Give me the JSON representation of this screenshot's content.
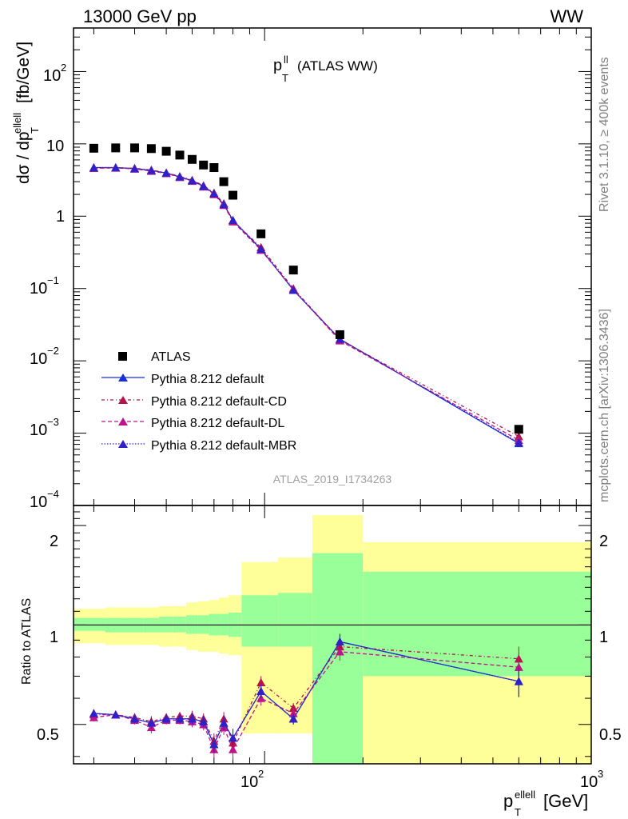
{
  "header": {
    "energy": "13000 GeV pp",
    "process": "WW",
    "plot_title_main": "p",
    "plot_title_sup": "ll",
    "plot_title_sub": "T",
    "plot_title_rest": "(ATLAS WW)",
    "watermark": "ATLAS_2019_I1734263",
    "side_rivet": "Rivet 3.1.10, ≥ 400k events",
    "side_mcplots": "mcplots.cern.ch [arXiv:1306.3436]"
  },
  "axes": {
    "top_ylabel_pre": "dσ / dp",
    "top_ylabel_sup": "ellell",
    "top_ylabel_sub": "T",
    "top_ylabel_post": " [fb/GeV]",
    "xlabel_main": "p",
    "xlabel_sup": "ellell",
    "xlabel_sub": "T",
    "xlabel_post": " [GeV]",
    "ratio_ylabel": "Ratio to ATLAS",
    "top_yticks": [
      {
        "base": "10",
        "exp": "2"
      },
      {
        "base": "10",
        "exp": ""
      },
      {
        "base": "1",
        "exp": ""
      },
      {
        "base": "10",
        "exp": "−1"
      },
      {
        "base": "10",
        "exp": "−2"
      },
      {
        "base": "10",
        "exp": "−3"
      },
      {
        "base": "10",
        "exp": "−4"
      }
    ],
    "xticks": [
      {
        "base": "10",
        "exp": "2"
      },
      {
        "base": "10",
        "exp": "3"
      }
    ],
    "ratio_yticks": [
      "2",
      "1",
      "0.5"
    ]
  },
  "legend": {
    "entries": [
      "ATLAS",
      "Pythia 8.212 default",
      "Pythia 8.212 default-CD",
      "Pythia 8.212 default-DL",
      "Pythia 8.212 default-MBR"
    ]
  },
  "chart_data": {
    "type": "scatter",
    "x_scale": "log",
    "y_scale": "log",
    "xlim": [
      26,
      1000
    ],
    "ylim": [
      0.0001,
      400
    ],
    "ratio_ylim": [
      0.38,
      2.3
    ],
    "colors": {
      "data": "#000000",
      "default": "#1a2fd6",
      "cd": "#b5134a",
      "dl": "#c0158a",
      "mbr": "#3020c8",
      "band_inner": "#99ff99",
      "band_outer": "#ffff99"
    },
    "x": [
      30,
      35,
      40,
      45,
      50,
      55,
      60,
      65,
      70,
      75,
      80,
      97.5,
      122.5,
      170,
      600
    ],
    "bin_edges": [
      26,
      32.5,
      37.5,
      42.5,
      47.5,
      52.5,
      57.5,
      62.5,
      67.5,
      72.5,
      77.5,
      85,
      110,
      140,
      200,
      1000
    ],
    "atlas": {
      "name": "ATLAS",
      "y": [
        8.7,
        8.8,
        8.8,
        8.6,
        7.9,
        7.0,
        6.1,
        5.1,
        4.7,
        3.0,
        1.95,
        0.57,
        0.18,
        0.023,
        0.00113
      ],
      "band_inner": [
        [
          0.96,
          1.05
        ],
        [
          0.95,
          1.05
        ],
        [
          0.95,
          1.05
        ],
        [
          0.95,
          1.05
        ],
        [
          0.95,
          1.06
        ],
        [
          0.95,
          1.06
        ],
        [
          0.94,
          1.07
        ],
        [
          0.94,
          1.07
        ],
        [
          0.93,
          1.08
        ],
        [
          0.93,
          1.08
        ],
        [
          0.92,
          1.09
        ],
        [
          0.86,
          1.23
        ],
        [
          0.86,
          1.25
        ],
        [
          0.35,
          1.65
        ],
        [
          0.7,
          1.45
        ]
      ],
      "band_outer": [
        [
          0.88,
          1.12
        ],
        [
          0.87,
          1.13
        ],
        [
          0.87,
          1.13
        ],
        [
          0.87,
          1.13
        ],
        [
          0.86,
          1.14
        ],
        [
          0.86,
          1.14
        ],
        [
          0.84,
          1.17
        ],
        [
          0.83,
          1.18
        ],
        [
          0.83,
          1.19
        ],
        [
          0.82,
          1.21
        ],
        [
          0.81,
          1.23
        ],
        [
          0.47,
          1.55
        ],
        [
          0.47,
          1.6
        ],
        [
          0.35,
          2.15
        ],
        [
          0.35,
          1.78
        ]
      ]
    },
    "series": [
      {
        "name": "Pythia 8.212 default",
        "key": "default",
        "y": [
          4.7,
          4.7,
          4.55,
          4.3,
          3.95,
          3.5,
          3.1,
          2.6,
          2.05,
          1.45,
          0.88,
          0.35,
          0.095,
          0.02,
          0.00072
        ],
        "ratio": [
          0.54,
          0.535,
          0.52,
          0.505,
          0.52,
          0.52,
          0.52,
          0.51,
          0.435,
          0.505,
          0.455,
          0.63,
          0.52,
          0.89,
          0.675
        ],
        "ratio_err": [
          0.015,
          0.012,
          0.015,
          0.02,
          0.015,
          0.015,
          0.02,
          0.02,
          0.025,
          0.025,
          0.03,
          0.03,
          0.02,
          0.05,
          0.07
        ]
      },
      {
        "name": "Pythia 8.212 default-CD",
        "key": "cd",
        "y": [
          4.65,
          4.68,
          4.6,
          4.35,
          3.98,
          3.55,
          3.15,
          2.65,
          2.1,
          1.5,
          0.86,
          0.37,
          0.1,
          0.0195,
          0.0009
        ],
        "ratio": [
          0.535,
          0.535,
          0.525,
          0.51,
          0.525,
          0.53,
          0.53,
          0.52,
          0.445,
          0.52,
          0.44,
          0.67,
          0.56,
          0.86,
          0.79
        ],
        "ratio_err": [
          0.015,
          0.012,
          0.015,
          0.02,
          0.015,
          0.015,
          0.02,
          0.02,
          0.025,
          0.025,
          0.03,
          0.03,
          0.02,
          0.05,
          0.07
        ]
      },
      {
        "name": "Pythia 8.212 default-DL",
        "key": "dl",
        "y": [
          4.6,
          4.65,
          4.5,
          4.2,
          3.9,
          3.45,
          3.05,
          2.55,
          2.0,
          1.42,
          0.84,
          0.34,
          0.097,
          0.019,
          0.0008
        ],
        "ratio": [
          0.525,
          0.535,
          0.515,
          0.49,
          0.515,
          0.515,
          0.51,
          0.5,
          0.42,
          0.49,
          0.42,
          0.6,
          0.54,
          0.83,
          0.745
        ],
        "ratio_err": [
          0.015,
          0.012,
          0.015,
          0.02,
          0.015,
          0.015,
          0.02,
          0.02,
          0.025,
          0.025,
          0.03,
          0.03,
          0.02,
          0.05,
          0.07
        ]
      },
      {
        "name": "Pythia 8.212 default-MBR",
        "key": "mbr",
        "y": [
          4.7,
          4.7,
          4.55,
          4.3,
          3.95,
          3.5,
          3.1,
          2.6,
          2.05,
          1.45,
          0.88,
          0.35,
          0.095,
          0.02,
          0.00074
        ],
        "ratio": [
          0.54,
          0.535,
          0.52,
          0.505,
          0.52,
          0.52,
          0.52,
          0.51,
          0.435,
          0.505,
          0.455,
          0.63,
          0.52,
          0.89,
          0.675
        ],
        "ratio_err": [
          0.015,
          0.012,
          0.015,
          0.02,
          0.015,
          0.015,
          0.02,
          0.02,
          0.025,
          0.025,
          0.03,
          0.03,
          0.02,
          0.05,
          0.07
        ]
      }
    ]
  }
}
